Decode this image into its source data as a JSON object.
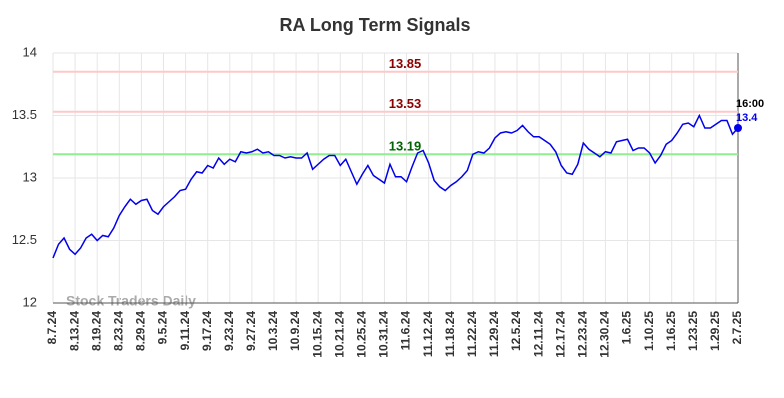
{
  "chart_data": {
    "type": "line",
    "title": "RA Long Term Signals",
    "watermark": "Stock Traders Daily",
    "color": "#0000ee",
    "categories": [
      "8.7.24",
      null,
      null,
      null,
      "8.13.24",
      null,
      null,
      null,
      "8.19.24",
      null,
      null,
      null,
      "8.23.24",
      null,
      null,
      null,
      "8.29.24",
      null,
      null,
      null,
      "9.5.24",
      null,
      null,
      null,
      "9.11.24",
      null,
      null,
      null,
      "9.17.24",
      null,
      null,
      null,
      "9.23.24",
      null,
      null,
      null,
      "9.27.24",
      null,
      null,
      null,
      "10.3.24",
      null,
      null,
      null,
      "10.9.24",
      null,
      null,
      null,
      "10.15.24",
      null,
      null,
      null,
      "10.21.24",
      null,
      null,
      null,
      "10.25.24",
      null,
      null,
      null,
      "10.31.24",
      null,
      null,
      null,
      "11.6.24",
      null,
      null,
      null,
      "11.12.24",
      null,
      null,
      null,
      "11.18.24",
      null,
      null,
      null,
      "11.22.24",
      null,
      null,
      null,
      "11.29.24",
      null,
      null,
      null,
      "12.5.24",
      null,
      null,
      null,
      "12.11.24",
      null,
      null,
      null,
      "12.17.24",
      null,
      null,
      null,
      "12.23.24",
      null,
      null,
      null,
      "12.30.24",
      null,
      null,
      null,
      "1.6.25",
      null,
      null,
      null,
      "1.10.25",
      null,
      null,
      null,
      "1.16.25",
      null,
      null,
      null,
      "1.23.25",
      null,
      null,
      null,
      "1.29.25",
      null,
      null,
      null,
      "2.7.25"
    ],
    "values": [
      12.36,
      12.47,
      12.52,
      12.43,
      12.39,
      12.44,
      12.52,
      12.55,
      12.5,
      12.54,
      12.53,
      12.6,
      12.7,
      12.77,
      12.83,
      12.79,
      12.82,
      12.83,
      12.74,
      12.71,
      12.77,
      12.81,
      12.85,
      12.9,
      12.91,
      12.99,
      13.05,
      13.04,
      13.1,
      13.08,
      13.16,
      13.11,
      13.15,
      13.13,
      13.21,
      13.2,
      13.21,
      13.23,
      13.2,
      13.21,
      13.18,
      13.18,
      13.16,
      13.17,
      13.16,
      13.16,
      13.2,
      13.07,
      13.11,
      13.15,
      13.18,
      13.18,
      13.1,
      13.15,
      13.05,
      12.95,
      13.03,
      13.1,
      13.02,
      12.99,
      12.96,
      13.11,
      13.01,
      13.01,
      12.97,
      13.09,
      13.2,
      13.22,
      13.12,
      12.98,
      12.93,
      12.9,
      12.94,
      12.97,
      13.01,
      13.06,
      13.19,
      13.21,
      13.2,
      13.24,
      13.32,
      13.36,
      13.37,
      13.36,
      13.38,
      13.42,
      13.37,
      13.33,
      13.33,
      13.3,
      13.27,
      13.21,
      13.1,
      13.04,
      13.03,
      13.11,
      13.28,
      13.23,
      13.2,
      13.17,
      13.21,
      13.2,
      13.29,
      13.3,
      13.31,
      13.22,
      13.24,
      13.24,
      13.2,
      13.12,
      13.18,
      13.27,
      13.3,
      13.36,
      13.43,
      13.44,
      13.41,
      13.5,
      13.4,
      13.4,
      13.43,
      13.46,
      13.46,
      13.35,
      13.4
    ],
    "last_time": "16:00",
    "hlines": [
      {
        "value": 13.85,
        "color": "#ffc8c8",
        "label_color": "#8b0000"
      },
      {
        "value": 13.53,
        "color": "#ffc8c8",
        "label_color": "#8b0000"
      },
      {
        "value": 13.19,
        "color": "#90ee90",
        "label_color": "#006400"
      }
    ],
    "ylim": [
      12,
      14
    ],
    "yticks": [
      12,
      12.5,
      13,
      13.5,
      14
    ],
    "grid": true
  }
}
